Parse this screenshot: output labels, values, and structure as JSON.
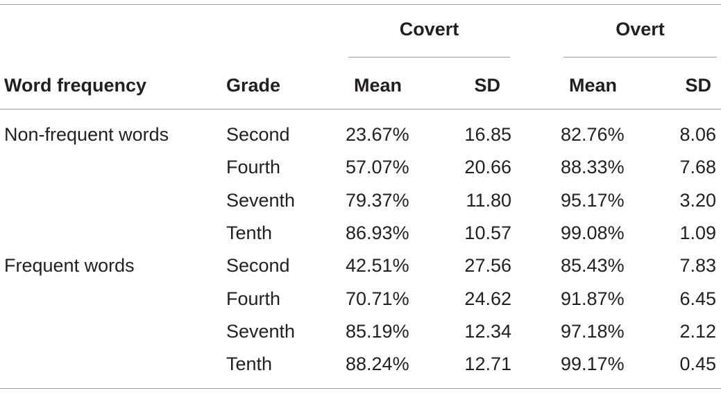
{
  "table": {
    "group_headers": {
      "covert": "Covert",
      "overt": "Overt"
    },
    "column_headers": {
      "word_frequency": "Word frequency",
      "grade": "Grade",
      "covert_mean": "Mean",
      "covert_sd": "SD",
      "overt_mean": "Mean",
      "overt_sd": "SD"
    },
    "rows": [
      {
        "word_frequency": "Non-frequent words",
        "grade": "Second",
        "covert_mean": "23.67%",
        "covert_sd": "16.85",
        "overt_mean": "82.76%",
        "overt_sd": "8.06"
      },
      {
        "word_frequency": "",
        "grade": "Fourth",
        "covert_mean": "57.07%",
        "covert_sd": "20.66",
        "overt_mean": "88.33%",
        "overt_sd": "7.68"
      },
      {
        "word_frequency": "",
        "grade": "Seventh",
        "covert_mean": "79.37%",
        "covert_sd": "11.80",
        "overt_mean": "95.17%",
        "overt_sd": "3.20"
      },
      {
        "word_frequency": "",
        "grade": "Tenth",
        "covert_mean": "86.93%",
        "covert_sd": "10.57",
        "overt_mean": "99.08%",
        "overt_sd": "1.09"
      },
      {
        "word_frequency": "Frequent words",
        "grade": "Second",
        "covert_mean": "42.51%",
        "covert_sd": "27.56",
        "overt_mean": "85.43%",
        "overt_sd": "7.83"
      },
      {
        "word_frequency": "",
        "grade": "Fourth",
        "covert_mean": "70.71%",
        "covert_sd": "24.62",
        "overt_mean": "91.87%",
        "overt_sd": "6.45"
      },
      {
        "word_frequency": "",
        "grade": "Seventh",
        "covert_mean": "85.19%",
        "covert_sd": "12.34",
        "overt_mean": "97.18%",
        "overt_sd": "2.12"
      },
      {
        "word_frequency": "",
        "grade": "Tenth",
        "covert_mean": "88.24%",
        "covert_sd": "12.71",
        "overt_mean": "99.17%",
        "overt_sd": "0.45"
      }
    ]
  }
}
